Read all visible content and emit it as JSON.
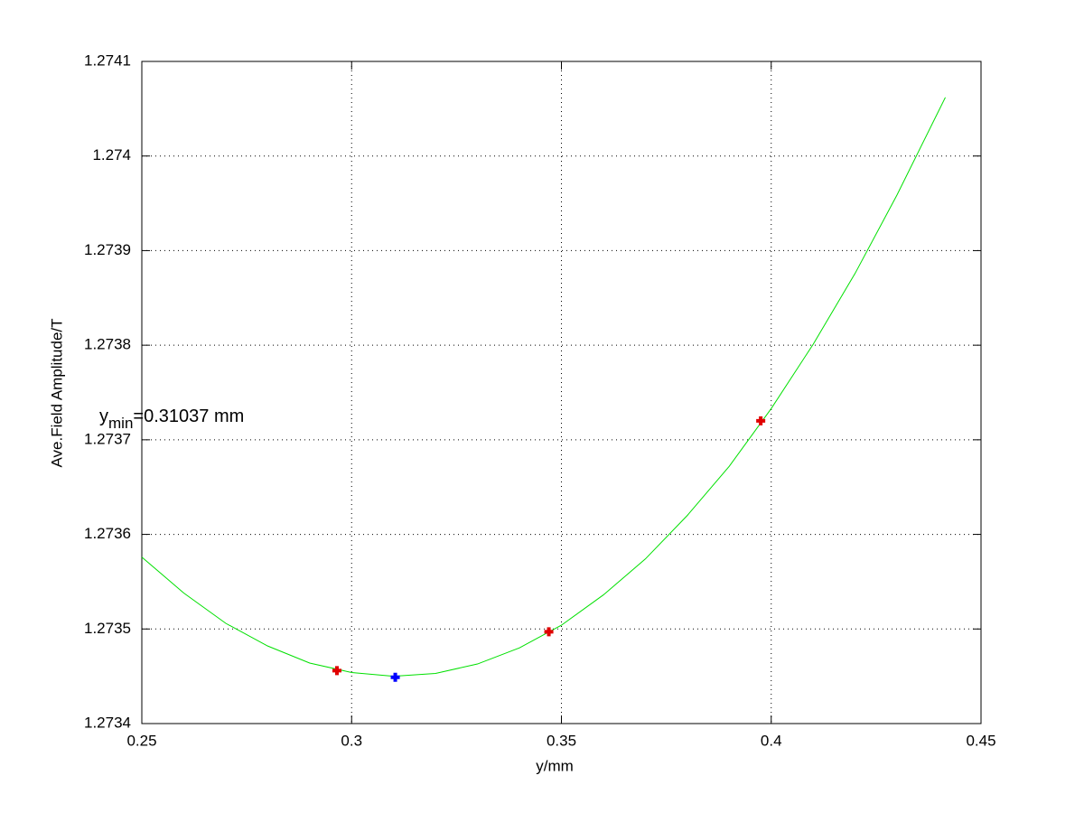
{
  "chart_data": {
    "type": "line",
    "xlabel": "y/mm",
    "ylabel": "Ave.Field Amplitude/T",
    "annotation": {
      "base": "y",
      "sub": "min",
      "text": "=0.31037 mm"
    },
    "xlim": [
      0.25,
      0.45
    ],
    "xticks": [
      0.25,
      0.3,
      0.35,
      0.4,
      0.45
    ],
    "ylim": [
      1.2734,
      1.2741
    ],
    "yticks": [
      1.2734,
      1.2735,
      1.2736,
      1.2737,
      1.2738,
      1.2739,
      1.274,
      1.2741
    ],
    "grid": true,
    "series": [
      {
        "kind": "line",
        "color": "#00e000",
        "x": [
          0.25,
          0.26,
          0.27,
          0.28,
          0.29,
          0.3,
          0.31,
          0.32,
          0.33,
          0.34,
          0.35,
          0.36,
          0.37,
          0.38,
          0.39,
          0.4,
          0.41,
          0.42,
          0.43,
          0.4415
        ],
        "values": [
          1.273576,
          1.273538,
          1.273506,
          1.273482,
          1.273464,
          1.273454,
          1.27345,
          1.273453,
          1.273463,
          1.27348,
          1.273504,
          1.273536,
          1.273574,
          1.27362,
          1.273672,
          1.273733,
          1.273801,
          1.273876,
          1.273959,
          1.274062
        ]
      },
      {
        "kind": "marker",
        "color": "#e00000",
        "x": [
          0.2965,
          0.347,
          0.3975
        ],
        "values": [
          1.273456,
          1.273497,
          1.27372
        ]
      },
      {
        "kind": "marker",
        "color": "#0000ff",
        "x": [
          0.3104
        ],
        "values": [
          1.273449
        ]
      }
    ]
  }
}
